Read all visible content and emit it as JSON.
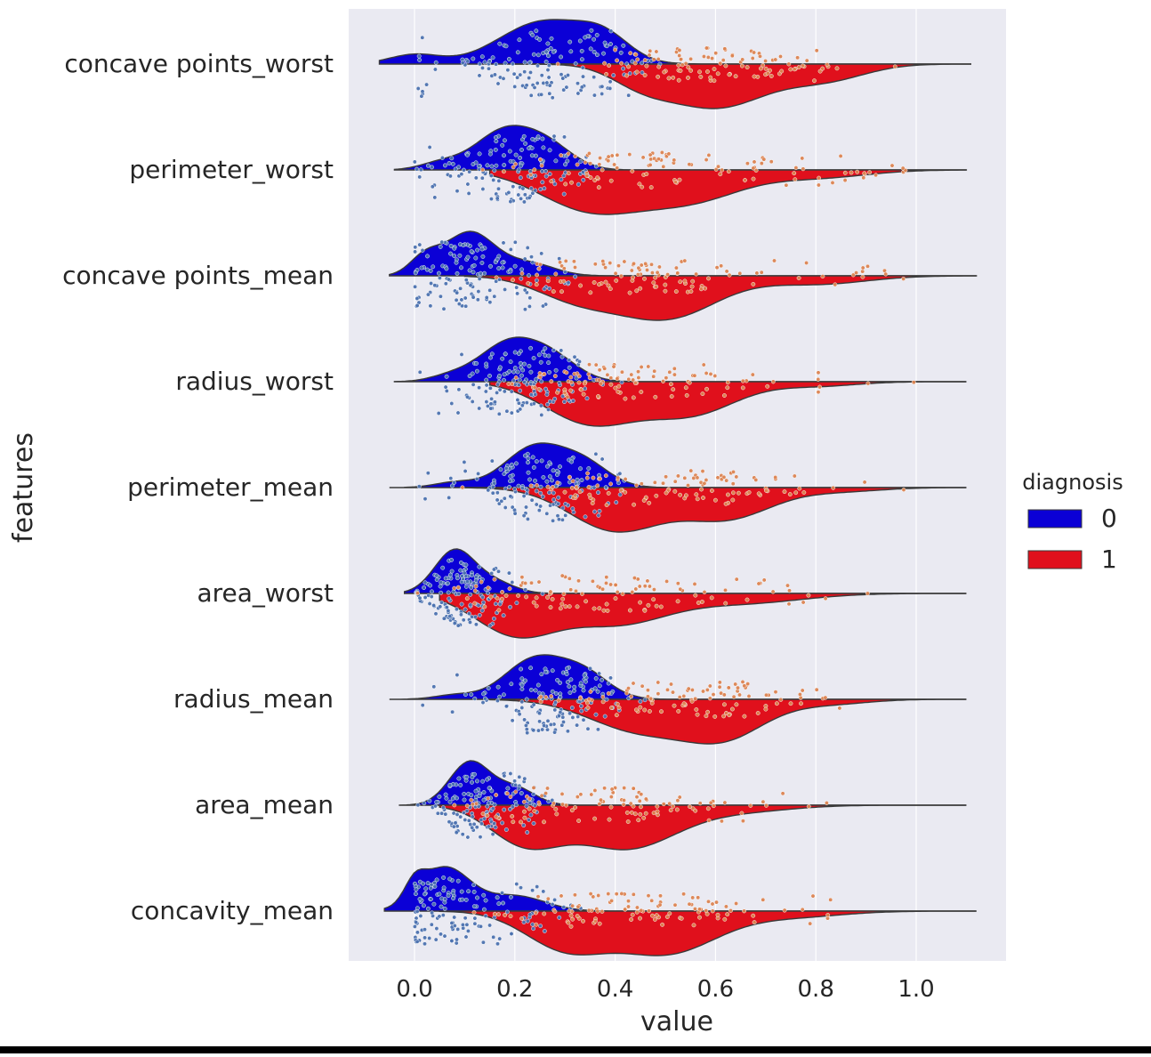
{
  "chart_data": {
    "type": "violin",
    "orientation": "horizontal",
    "split": true,
    "overlay": "swarm",
    "xlabel": "value",
    "ylabel": "features",
    "xlim": [
      -0.13,
      1.18
    ],
    "xticks": [
      0.0,
      0.2,
      0.4,
      0.6,
      0.8,
      1.0
    ],
    "xtick_labels": [
      "0.0",
      "0.2",
      "0.4",
      "0.6",
      "0.8",
      "1.0"
    ],
    "grid": true,
    "background": "#eaeaf2",
    "legend": {
      "title": "diagnosis",
      "placement": "right",
      "entries": [
        {
          "label": "0",
          "color": "#0b00d6"
        },
        {
          "label": "1",
          "color": "#e0101c"
        }
      ]
    },
    "swarm_colors": {
      "0": "#4c72b0",
      "1": "#dd8452"
    },
    "categories": [
      "concave points_worst",
      "perimeter_worst",
      "concave points_mean",
      "radius_worst",
      "perimeter_mean",
      "area_worst",
      "radius_mean",
      "area_mean",
      "concavity_mean"
    ],
    "series": [
      {
        "label": "0",
        "side": "upper",
        "color": "#0b00d6",
        "distributions": [
          {
            "feature": "concave points_worst",
            "range": [
              -0.07,
              1.11
            ],
            "peaks": [
              [
                0.0,
                0.22,
                0.05
              ],
              [
                0.26,
                1.0,
                0.09
              ],
              [
                0.38,
                0.45,
                0.05
              ]
            ]
          },
          {
            "feature": "perimeter_worst",
            "range": [
              -0.04,
              1.1
            ],
            "peaks": [
              [
                0.18,
                0.9,
                0.06
              ],
              [
                0.27,
                0.45,
                0.05
              ],
              [
                0.05,
                0.15,
                0.04
              ]
            ]
          },
          {
            "feature": "concave points_mean",
            "range": [
              -0.05,
              1.12
            ],
            "peaks": [
              [
                0.11,
                0.9,
                0.05
              ],
              [
                0.02,
                0.35,
                0.03
              ],
              [
                0.23,
                0.25,
                0.05
              ]
            ]
          },
          {
            "feature": "radius_worst",
            "range": [
              -0.04,
              1.1
            ],
            "peaks": [
              [
                0.19,
                0.95,
                0.06
              ],
              [
                0.28,
                0.45,
                0.05
              ],
              [
                0.07,
                0.12,
                0.04
              ]
            ]
          },
          {
            "feature": "perimeter_mean",
            "range": [
              -0.05,
              1.1
            ],
            "peaks": [
              [
                0.24,
                0.95,
                0.06
              ],
              [
                0.34,
                0.5,
                0.05
              ],
              [
                0.08,
                0.12,
                0.04
              ]
            ]
          },
          {
            "feature": "area_worst",
            "range": [
              -0.02,
              1.1
            ],
            "peaks": [
              [
                0.08,
                1.0,
                0.04
              ],
              [
                0.16,
                0.25,
                0.04
              ]
            ]
          },
          {
            "feature": "radius_mean",
            "range": [
              -0.05,
              1.1
            ],
            "peaks": [
              [
                0.24,
                0.95,
                0.06
              ],
              [
                0.34,
                0.55,
                0.05
              ],
              [
                0.08,
                0.1,
                0.04
              ]
            ]
          },
          {
            "feature": "area_mean",
            "range": [
              -0.03,
              1.1
            ],
            "peaks": [
              [
                0.11,
                1.0,
                0.04
              ],
              [
                0.2,
                0.4,
                0.04
              ]
            ]
          },
          {
            "feature": "concavity_mean",
            "range": [
              -0.06,
              1.12
            ],
            "peaks": [
              [
                0.06,
                1.0,
                0.05
              ],
              [
                0.2,
                0.35,
                0.06
              ],
              [
                0.0,
                0.4,
                0.02
              ]
            ]
          }
        ]
      },
      {
        "label": "1",
        "side": "lower",
        "color": "#e0101c",
        "distributions": [
          {
            "feature": "concave points_worst",
            "range": [
              0.2,
              1.11
            ],
            "peaks": [
              [
                0.6,
                0.85,
                0.1
              ],
              [
                0.82,
                0.3,
                0.08
              ],
              [
                0.45,
                0.3,
                0.06
              ]
            ]
          },
          {
            "feature": "perimeter_worst",
            "range": [
              0.15,
              1.1
            ],
            "peaks": [
              [
                0.35,
                0.4,
                0.1
              ],
              [
                0.55,
                0.3,
                0.1
              ],
              [
                0.8,
                0.08,
                0.1
              ]
            ]
          },
          {
            "feature": "concave points_mean",
            "range": [
              0.1,
              1.12
            ],
            "peaks": [
              [
                0.32,
                0.2,
                0.08
              ],
              [
                0.5,
                0.4,
                0.1
              ],
              [
                0.8,
                0.08,
                0.1
              ]
            ]
          },
          {
            "feature": "radius_worst",
            "range": [
              0.15,
              1.1
            ],
            "peaks": [
              [
                0.35,
                0.45,
                0.09
              ],
              [
                0.55,
                0.35,
                0.09
              ],
              [
                0.8,
                0.05,
                0.08
              ]
            ]
          },
          {
            "feature": "perimeter_mean",
            "range": [
              0.1,
              1.1
            ],
            "peaks": [
              [
                0.4,
                0.55,
                0.09
              ],
              [
                0.62,
                0.4,
                0.09
              ],
              [
                0.85,
                0.05,
                0.08
              ]
            ]
          },
          {
            "feature": "area_worst",
            "range": [
              0.05,
              1.1
            ],
            "peaks": [
              [
                0.2,
                0.4,
                0.08
              ],
              [
                0.4,
                0.3,
                0.1
              ],
              [
                0.65,
                0.1,
                0.12
              ]
            ]
          },
          {
            "feature": "radius_mean",
            "range": [
              0.15,
              1.1
            ],
            "peaks": [
              [
                0.45,
                0.5,
                0.1
              ],
              [
                0.62,
                0.55,
                0.08
              ],
              [
                0.82,
                0.08,
                0.08
              ]
            ]
          },
          {
            "feature": "area_mean",
            "range": [
              0.05,
              1.1
            ],
            "peaks": [
              [
                0.22,
                0.3,
                0.07
              ],
              [
                0.42,
                0.35,
                0.1
              ],
              [
                0.65,
                0.05,
                0.1
              ]
            ]
          },
          {
            "feature": "concavity_mean",
            "range": [
              0.05,
              1.12
            ],
            "peaks": [
              [
                0.3,
                0.3,
                0.08
              ],
              [
                0.5,
                0.35,
                0.1
              ],
              [
                0.75,
                0.05,
                0.1
              ]
            ]
          }
        ]
      }
    ]
  }
}
